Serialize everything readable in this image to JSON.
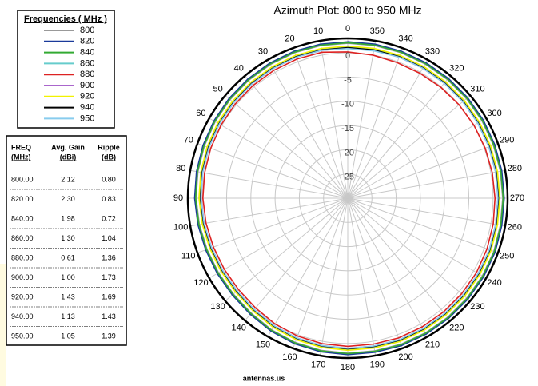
{
  "chart_data": {
    "type": "polar-line",
    "title": "Azimuth Plot: 800 to 950 MHz",
    "footer": "antennas.us",
    "legend_title": "Frequencies ( MHz )",
    "legend": "upper-left",
    "theta": [
      0,
      10,
      20,
      30,
      40,
      50,
      60,
      70,
      80,
      90,
      100,
      110,
      120,
      130,
      140,
      150,
      160,
      170,
      180,
      190,
      200,
      210,
      220,
      230,
      240,
      250,
      260,
      270,
      280,
      290,
      300,
      310,
      320,
      330,
      340,
      350
    ],
    "thetaticks": [
      0,
      10,
      20,
      30,
      40,
      50,
      60,
      70,
      80,
      90,
      100,
      110,
      120,
      130,
      140,
      150,
      160,
      170,
      180,
      190,
      200,
      210,
      220,
      230,
      240,
      250,
      260,
      270,
      280,
      290,
      300,
      310,
      320,
      330,
      340,
      350
    ],
    "rlim": [
      -30,
      3
    ],
    "rticks": [
      0,
      -5,
      -10,
      -15,
      -20,
      -25
    ],
    "grid": true,
    "series": [
      {
        "name": "800",
        "color": "#999999",
        "values": [
          2.0,
          2.0,
          2.0,
          1.9,
          1.8,
          1.7,
          1.6,
          1.5,
          1.4,
          1.3,
          1.1,
          0.9,
          0.8,
          0.8,
          1.0,
          1.4,
          1.7,
          1.9,
          2.0,
          2.0,
          2.1,
          2.1,
          2.1,
          2.1,
          2.1,
          2.1,
          2.0,
          2.0,
          2.0,
          2.0,
          2.0,
          2.0,
          2.0,
          2.0,
          2.0,
          2.0
        ]
      },
      {
        "name": "820",
        "color": "#1a3a9a",
        "values": [
          2.3,
          2.3,
          2.3,
          2.2,
          2.1,
          2.0,
          1.9,
          1.8,
          1.7,
          1.6,
          1.4,
          1.2,
          1.1,
          1.1,
          1.3,
          1.7,
          2.0,
          2.2,
          2.3,
          2.3,
          2.4,
          2.4,
          2.4,
          2.4,
          2.4,
          2.4,
          2.3,
          2.3,
          2.3,
          2.3,
          2.3,
          2.3,
          2.3,
          2.3,
          2.3,
          2.3
        ]
      },
      {
        "name": "840",
        "color": "#33aa33",
        "values": [
          2.1,
          2.1,
          2.1,
          2.0,
          1.9,
          1.8,
          1.7,
          1.6,
          1.5,
          1.4,
          1.2,
          1.0,
          0.9,
          0.9,
          1.1,
          1.5,
          1.8,
          2.0,
          2.1,
          2.1,
          2.2,
          2.2,
          2.2,
          2.2,
          2.2,
          2.2,
          2.1,
          2.1,
          2.1,
          2.1,
          2.1,
          2.1,
          2.1,
          2.1,
          2.1,
          2.1
        ]
      },
      {
        "name": "860",
        "color": "#66cccc",
        "values": [
          1.3,
          1.3,
          1.3,
          1.2,
          1.1,
          1.0,
          0.9,
          0.8,
          0.7,
          0.6,
          0.4,
          0.2,
          0.1,
          0.1,
          0.3,
          0.7,
          1.0,
          1.2,
          1.3,
          1.3,
          1.4,
          1.4,
          1.4,
          1.4,
          1.4,
          1.4,
          1.3,
          1.3,
          1.3,
          1.3,
          1.3,
          1.3,
          1.3,
          1.3,
          1.3,
          1.3
        ]
      },
      {
        "name": "880",
        "color": "#dd2222",
        "values": [
          0.2,
          0.6,
          0.6,
          0.5,
          0.4,
          0.3,
          0.2,
          0.1,
          0.0,
          -0.1,
          -0.3,
          -0.5,
          -0.6,
          -0.6,
          -0.4,
          0.0,
          0.3,
          0.5,
          0.6,
          0.6,
          0.7,
          0.7,
          0.7,
          0.7,
          0.7,
          0.6,
          0.5,
          0.4,
          0.3,
          0.2,
          0.1,
          0.0,
          -0.1,
          -0.2,
          -0.2,
          0.0
        ]
      },
      {
        "name": "900",
        "color": "#aa66cc",
        "values": [
          1.0,
          1.0,
          1.0,
          0.9,
          0.8,
          0.7,
          0.6,
          0.5,
          0.4,
          0.3,
          0.1,
          -0.1,
          -0.2,
          -0.2,
          0.0,
          0.4,
          0.7,
          0.9,
          1.0,
          1.0,
          1.1,
          1.1,
          1.1,
          1.1,
          1.1,
          1.1,
          1.0,
          1.0,
          1.0,
          1.0,
          1.0,
          1.0,
          1.0,
          1.0,
          1.0,
          1.0
        ]
      },
      {
        "name": "920",
        "color": "#f2f200",
        "values": [
          1.4,
          1.4,
          1.4,
          1.3,
          1.2,
          1.1,
          1.0,
          0.9,
          0.8,
          0.7,
          0.5,
          0.3,
          0.2,
          0.2,
          0.4,
          0.8,
          1.1,
          1.3,
          1.4,
          1.4,
          1.5,
          1.5,
          1.5,
          1.5,
          1.5,
          1.5,
          1.4,
          1.4,
          1.4,
          1.4,
          1.4,
          1.4,
          1.4,
          1.4,
          1.4,
          1.4
        ]
      },
      {
        "name": "940",
        "color": "#000000",
        "values": [
          1.1,
          1.1,
          1.1,
          1.0,
          0.9,
          0.8,
          0.7,
          0.6,
          0.5,
          0.4,
          0.2,
          0.0,
          -0.1,
          -0.1,
          0.1,
          0.5,
          0.8,
          1.0,
          1.1,
          1.1,
          1.2,
          1.2,
          1.2,
          1.2,
          1.2,
          1.2,
          1.1,
          1.1,
          1.1,
          1.1,
          1.1,
          1.1,
          1.1,
          1.1,
          1.1,
          1.1
        ]
      },
      {
        "name": "950",
        "color": "#88ccee",
        "values": [
          0.9,
          1.0,
          1.0,
          0.9,
          0.8,
          0.7,
          0.6,
          0.5,
          0.4,
          0.3,
          0.1,
          -0.1,
          -0.2,
          -0.2,
          0.0,
          0.4,
          0.7,
          0.9,
          1.0,
          1.0,
          1.1,
          1.1,
          1.1,
          1.1,
          1.1,
          1.1,
          1.0,
          1.0,
          1.0,
          1.0,
          1.0,
          1.0,
          1.0,
          1.0,
          1.0,
          0.9
        ]
      }
    ]
  },
  "table": {
    "headers": [
      [
        "FREQ",
        "(MHz)"
      ],
      [
        "Avg. Gain",
        "(dBi)"
      ],
      [
        "Ripple",
        "(dB)"
      ]
    ],
    "rows": [
      [
        "800.00",
        "2.12",
        "0.80"
      ],
      [
        "820.00",
        "2.30",
        "0.83"
      ],
      [
        "840.00",
        "1.98",
        "0.72"
      ],
      [
        "860.00",
        "1.30",
        "1.04"
      ],
      [
        "880.00",
        "0.61",
        "1.36"
      ],
      [
        "900.00",
        "1.00",
        "1.73"
      ],
      [
        "920.00",
        "1.43",
        "1.69"
      ],
      [
        "940.00",
        "1.13",
        "1.43"
      ],
      [
        "950.00",
        "1.05",
        "1.39"
      ]
    ]
  }
}
